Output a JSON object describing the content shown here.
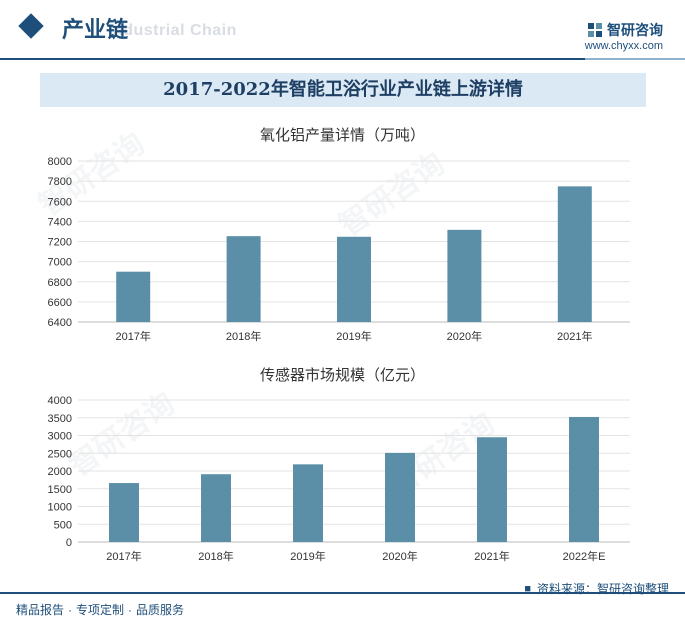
{
  "header": {
    "section_title": "产业链",
    "section_subtitle": "Industrial Chain",
    "brand_name": "智研咨询",
    "brand_url": "www.chyxx.com"
  },
  "banner": {
    "title": "2017-2022年智能卫浴行业产业链上游详情"
  },
  "watermark": {
    "text": "智研咨询"
  },
  "chart_data": [
    {
      "type": "bar",
      "title": "氧化铝产量详情（万吨）",
      "categories": [
        "2017年",
        "2018年",
        "2019年",
        "2020年",
        "2021年"
      ],
      "values": [
        6900,
        7253,
        7247,
        7316,
        7748
      ],
      "ylim": [
        6400,
        8000
      ],
      "yticks": [
        6400,
        6600,
        6800,
        7000,
        7200,
        7400,
        7600,
        7800,
        8000
      ],
      "grid": true,
      "bar_color": "#5b8fa8"
    },
    {
      "type": "bar",
      "title": "传感器市场规模（亿元）",
      "categories": [
        "2017年",
        "2018年",
        "2019年",
        "2020年",
        "2021年",
        "2022年E"
      ],
      "values": [
        1660,
        1910,
        2188,
        2510,
        2951,
        3522
      ],
      "ylim": [
        0,
        4000
      ],
      "yticks": [
        0,
        500,
        1000,
        1500,
        2000,
        2500,
        3000,
        3500,
        4000
      ],
      "grid": true,
      "bar_color": "#5b8fa8"
    }
  ],
  "footer": {
    "tags": [
      "精品报告",
      "专项定制",
      "品质服务"
    ],
    "source": "资料来源：智研咨询整理"
  }
}
